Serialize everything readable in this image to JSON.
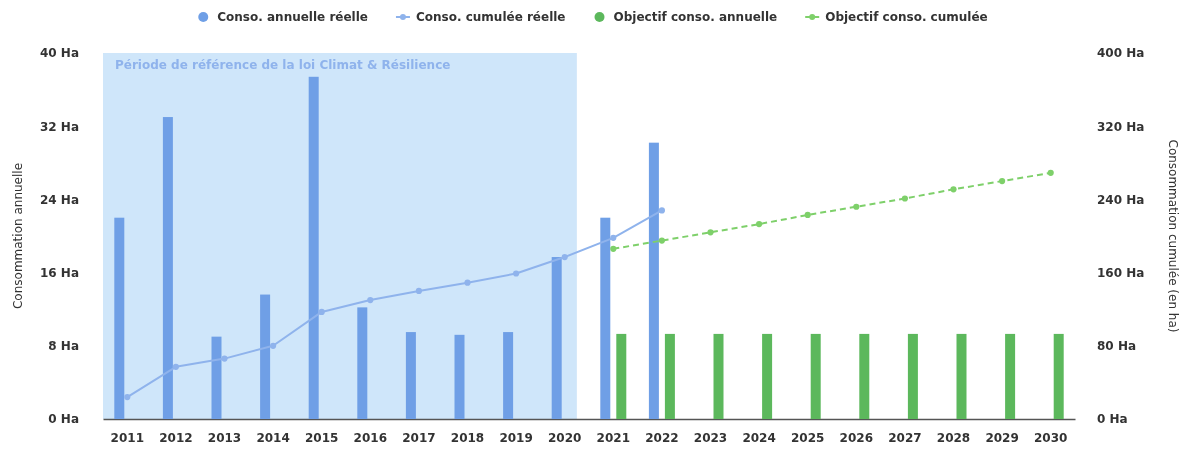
{
  "chart_data": {
    "type": "bar",
    "ylabel": "Consommation annuelle",
    "y2label": "Consommation cumulée (en ha)",
    "categories": [
      "2011",
      "2012",
      "2013",
      "2014",
      "2015",
      "2016",
      "2017",
      "2018",
      "2019",
      "2020",
      "2021",
      "2022",
      "2023",
      "2024",
      "2025",
      "2026",
      "2027",
      "2028",
      "2029",
      "2030"
    ],
    "series": [
      {
        "name": "Conso. annuelle réelle",
        "color": "#6f9fe6",
        "values": [
          22,
          33,
          9,
          13.6,
          37.4,
          12.2,
          9.5,
          9.2,
          9.5,
          17.7,
          22,
          30.2,
          null,
          null,
          null,
          null,
          null,
          null,
          null,
          null
        ]
      },
      {
        "name": "Conso. cumulée réelle",
        "type": "line",
        "axis": "y2",
        "color": "#8fb3ec",
        "marker": "circle",
        "line_style": "solid",
        "values": [
          24,
          57,
          66,
          80,
          117,
          130,
          140,
          149,
          159,
          177,
          198,
          228,
          null,
          null,
          null,
          null,
          null,
          null,
          null,
          null
        ]
      },
      {
        "name": "Objectif conso. annuelle",
        "color": "#5cb85c",
        "values": [
          null,
          null,
          null,
          null,
          null,
          null,
          null,
          null,
          null,
          null,
          9.3,
          9.3,
          9.3,
          9.3,
          9.3,
          9.3,
          9.3,
          9.3,
          9.3,
          9.3
        ]
      },
      {
        "name": "Objectif conso. cumulée",
        "type": "line",
        "axis": "y2",
        "color": "#7ed06a",
        "marker": "circle",
        "line_style": "dashed",
        "values": [
          null,
          null,
          null,
          null,
          null,
          null,
          null,
          null,
          null,
          null,
          186,
          195,
          204,
          213,
          223,
          232,
          241,
          251,
          260,
          269
        ]
      }
    ],
    "ylim": [
      0,
      40
    ],
    "yticks": [
      {
        "value": 0,
        "label": "0 Ha"
      },
      {
        "value": 8,
        "label": "8 Ha"
      },
      {
        "value": 16,
        "label": "16 Ha"
      },
      {
        "value": 24,
        "label": "24 Ha"
      },
      {
        "value": 32,
        "label": "32 Ha"
      },
      {
        "value": 40,
        "label": "40 Ha"
      }
    ],
    "y2lim": [
      0,
      400
    ],
    "y2ticks": [
      {
        "value": 0,
        "label": "0 Ha"
      },
      {
        "value": 80,
        "label": "80 Ha"
      },
      {
        "value": 160,
        "label": "160 Ha"
      },
      {
        "value": 240,
        "label": "240 Ha"
      },
      {
        "value": 320,
        "label": "320 Ha"
      },
      {
        "value": 400,
        "label": "400 Ha"
      }
    ],
    "bands": [
      {
        "axis": "x",
        "from": "2011",
        "to": "2020",
        "label": "Période de référence de la loi Climat & Résilience",
        "color": "#cfe6fa"
      }
    ],
    "legend": "top",
    "grid": false
  }
}
